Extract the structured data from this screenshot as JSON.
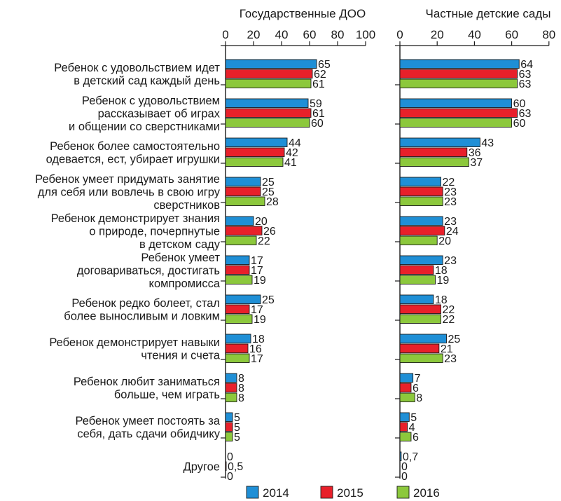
{
  "chart_data": [
    {
      "type": "bar",
      "orientation": "horizontal",
      "title": "Государственные ДОО",
      "xlim": [
        0,
        100
      ],
      "ticks": [
        "0",
        "20",
        "40",
        "60",
        "80",
        "100"
      ],
      "categories": [
        [
          "Ребенок с удовольствием идет",
          "в детский сад каждый день"
        ],
        [
          "Ребенок с удовольствием",
          "рассказывает об играх",
          "и общении со сверстниками"
        ],
        [
          "Ребенок более самостоятельно",
          "одевается, ест, убирает игрушки"
        ],
        [
          "Ребенок умеет придумать занятие",
          "для себя или вовлечь в свою игру",
          "сверстников"
        ],
        [
          "Ребенок демонстрирует знания",
          "о природе, почерпнутые",
          "в детском саду"
        ],
        [
          "Ребенок умеет",
          "договариваться, достигать",
          "компромисса"
        ],
        [
          "Ребенок редко болеет, стал",
          "более выносливым и ловким"
        ],
        [
          "Ребенок демонстрирует навыки",
          "чтения и счета"
        ],
        [
          "Ребенок любит заниматься",
          "больше, чем играть"
        ],
        [
          "Ребенок умеет постоять за",
          "себя, дать сдачи обидчику"
        ],
        [
          "Другое"
        ]
      ],
      "series": [
        {
          "name": "2014",
          "color": "#1f8fd6",
          "values": [
            65,
            59,
            44,
            25,
            20,
            17,
            25,
            18,
            8,
            5,
            0
          ],
          "labels": [
            "65",
            "59",
            "44",
            "25",
            "20",
            "17",
            "25",
            "18",
            "8",
            "5",
            "0"
          ]
        },
        {
          "name": "2015",
          "color": "#e8202a",
          "values": [
            62,
            61,
            42,
            25,
            26,
            17,
            17,
            16,
            8,
            5,
            0.5
          ],
          "labels": [
            "62",
            "61",
            "42",
            "25",
            "26",
            "17",
            "17",
            "16",
            "8",
            "5",
            "0,5"
          ]
        },
        {
          "name": "2016",
          "color": "#8cc83c",
          "values": [
            61,
            60,
            41,
            28,
            22,
            19,
            19,
            17,
            8,
            5,
            0
          ],
          "labels": [
            "61",
            "60",
            "41",
            "28",
            "22",
            "19",
            "19",
            "17",
            "8",
            "5",
            "0"
          ]
        }
      ]
    },
    {
      "type": "bar",
      "orientation": "horizontal",
      "title": "Частные детские сады",
      "xlim": [
        0,
        80
      ],
      "ticks": [
        "0",
        "20",
        "40",
        "60",
        "80"
      ],
      "categories": "same as first chart",
      "series": [
        {
          "name": "2014",
          "color": "#1f8fd6",
          "values": [
            64,
            60,
            43,
            22,
            23,
            23,
            18,
            25,
            7,
            5,
            0.7
          ],
          "labels": [
            "64",
            "60",
            "43",
            "22",
            "23",
            "23",
            "18",
            "25",
            "7",
            "5",
            "0,7"
          ]
        },
        {
          "name": "2015",
          "color": "#e8202a",
          "values": [
            63,
            63,
            36,
            23,
            24,
            18,
            22,
            21,
            6,
            4,
            0
          ],
          "labels": [
            "63",
            "63",
            "36",
            "23",
            "24",
            "18",
            "22",
            "21",
            "6",
            "4",
            "0"
          ]
        },
        {
          "name": "2016",
          "color": "#8cc83c",
          "values": [
            63,
            60,
            37,
            23,
            20,
            19,
            22,
            23,
            8,
            6,
            0
          ],
          "labels": [
            "63",
            "60",
            "37",
            "23",
            "20",
            "19",
            "22",
            "23",
            "8",
            "6",
            "0"
          ]
        }
      ]
    }
  ],
  "legend": [
    {
      "label": "2014",
      "color": "#1f8fd6"
    },
    {
      "label": "2015",
      "color": "#e8202a"
    },
    {
      "label": "2016",
      "color": "#8cc83c"
    }
  ]
}
